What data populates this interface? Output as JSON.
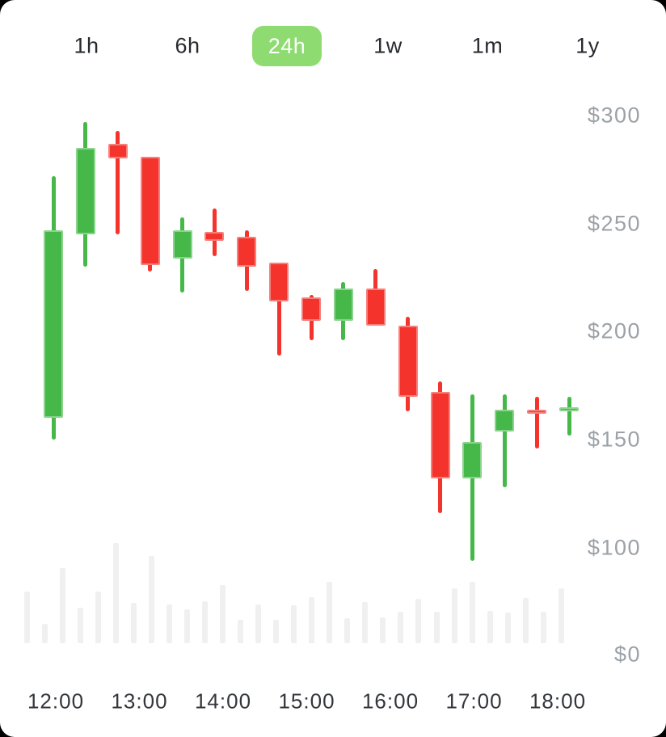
{
  "tabs": {
    "items": [
      {
        "label": "1h",
        "active": false
      },
      {
        "label": "6h",
        "active": false
      },
      {
        "label": "24h",
        "active": true
      },
      {
        "label": "1w",
        "active": false
      },
      {
        "label": "1m",
        "active": false
      },
      {
        "label": "1y",
        "active": false
      }
    ],
    "active_bg": "#8edc71",
    "active_text": "#ffffff",
    "inactive_text": "#26292e"
  },
  "chart_data": {
    "type": "candlestick",
    "title": "",
    "xlabel": "",
    "ylabel": "",
    "currency_prefix": "$",
    "y_axis": {
      "tick_labels": [
        "$300",
        "$250",
        "$200",
        "$150",
        "$100",
        "$0"
      ],
      "tick_values": [
        300,
        250,
        200,
        150,
        100,
        0
      ],
      "color": "#9ba1a6",
      "side": "right"
    },
    "x_axis": {
      "tick_labels": [
        "12:00",
        "13:00",
        "14:00",
        "15:00",
        "16:00",
        "17:00",
        "18:00"
      ],
      "color": "#33363b"
    },
    "ylim": [
      0,
      300
    ],
    "grid": false,
    "legend": false,
    "candles": [
      {
        "open": 160,
        "high": 272,
        "low": 150,
        "close": 247
      },
      {
        "open": 245,
        "high": 297,
        "low": 230,
        "close": 285
      },
      {
        "open": 287,
        "high": 293,
        "low": 245,
        "close": 280
      },
      {
        "open": 281,
        "high": 281,
        "low": 228,
        "close": 231
      },
      {
        "open": 234,
        "high": 253,
        "low": 218,
        "close": 247
      },
      {
        "open": 246,
        "high": 257,
        "low": 235,
        "close": 242
      },
      {
        "open": 244,
        "high": 247,
        "low": 219,
        "close": 230
      },
      {
        "open": 232,
        "high": 232,
        "low": 189,
        "close": 214
      },
      {
        "open": 216,
        "high": 217,
        "low": 196,
        "close": 205
      },
      {
        "open": 205,
        "high": 223,
        "low": 196,
        "close": 220
      },
      {
        "open": 220,
        "high": 229,
        "low": 203,
        "close": 203
      },
      {
        "open": 203,
        "high": 207,
        "low": 163,
        "close": 170
      },
      {
        "open": 172,
        "high": 177,
        "low": 116,
        "close": 132
      },
      {
        "open": 132,
        "high": 171,
        "low": 94,
        "close": 149
      },
      {
        "open": 154,
        "high": 171,
        "low": 128,
        "close": 164
      },
      {
        "open": 164,
        "high": 170,
        "low": 146,
        "close": 162
      },
      {
        "open": 163,
        "high": 170,
        "low": 152,
        "close": 165
      }
    ],
    "volume_relative": [
      64,
      24,
      93,
      44,
      64,
      124,
      50,
      108,
      48,
      42,
      52,
      72,
      29,
      48,
      29,
      47,
      57,
      76,
      31,
      51,
      32,
      39,
      55,
      39,
      68,
      76,
      40,
      38,
      56,
      39,
      68
    ],
    "colors": {
      "up": "#46b84a",
      "down": "#f4332d",
      "volume": "#f0f0f1"
    }
  }
}
